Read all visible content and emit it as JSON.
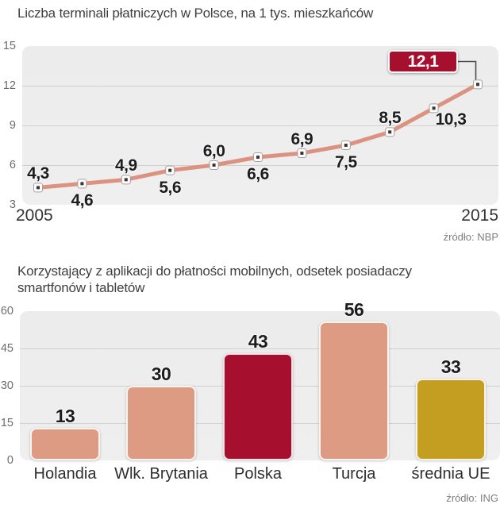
{
  "colors": {
    "salmon": "#de9b83",
    "line_salmon": "#db9280",
    "crimson": "#a60f2d",
    "gold": "#c39e21",
    "plot_bg": "#ededed",
    "gridline": "#d0d0d0"
  },
  "chart_data": [
    {
      "type": "line",
      "title": "Liczba terminali płatniczych w Polsce, na 1 tys. mieszkańców",
      "source": "źródło: NBP",
      "x": [
        2005,
        2006,
        2007,
        2008,
        2009,
        2010,
        2011,
        2012,
        2013,
        2014,
        2015
      ],
      "values": [
        4.3,
        4.6,
        4.9,
        5.6,
        6.0,
        6.6,
        6.9,
        7.5,
        8.5,
        10.3,
        12.1
      ],
      "point_labels": [
        "4,3",
        "4,6",
        "4,9",
        "5,6",
        "6,0",
        "6,6",
        "6,9",
        "7,5",
        "8,5",
        "10,3",
        "12,1"
      ],
      "label_placement": [
        "above",
        "below",
        "above",
        "below",
        "above",
        "below",
        "above",
        "below",
        "above",
        "below-right",
        "callout"
      ],
      "x_axis_labels": [
        "2005",
        "2015"
      ],
      "y_ticks": [
        15,
        12,
        9,
        6,
        3
      ],
      "ylim": [
        3,
        15
      ],
      "grid": true,
      "line_color": "#db9280",
      "highlight": {
        "label": "12,1",
        "bg": "#a60f2d",
        "text": "#ffffff"
      }
    },
    {
      "type": "bar",
      "title": "Korzystający z aplikacji do płatności mobilnych, odsetek posiadaczy smartfonów i tabletów",
      "title_lines": [
        "Korzystający z aplikacji do płatności mobilnych, odsetek posiadaczy",
        "smartfonów i tabletów"
      ],
      "source": "źródło: ING",
      "categories": [
        "Holandia",
        "Wlk. Brytania",
        "Polska",
        "Turcja",
        "średnia UE"
      ],
      "values": [
        13,
        30,
        43,
        56,
        33
      ],
      "value_labels": [
        "13",
        "30",
        "43",
        "56",
        "33"
      ],
      "bar_colors": [
        "#de9b83",
        "#de9b83",
        "#a60f2d",
        "#de9b83",
        "#c39e21"
      ],
      "y_ticks": [
        60,
        45,
        30,
        15,
        0
      ],
      "ylim": [
        0,
        60
      ],
      "grid": true
    }
  ]
}
